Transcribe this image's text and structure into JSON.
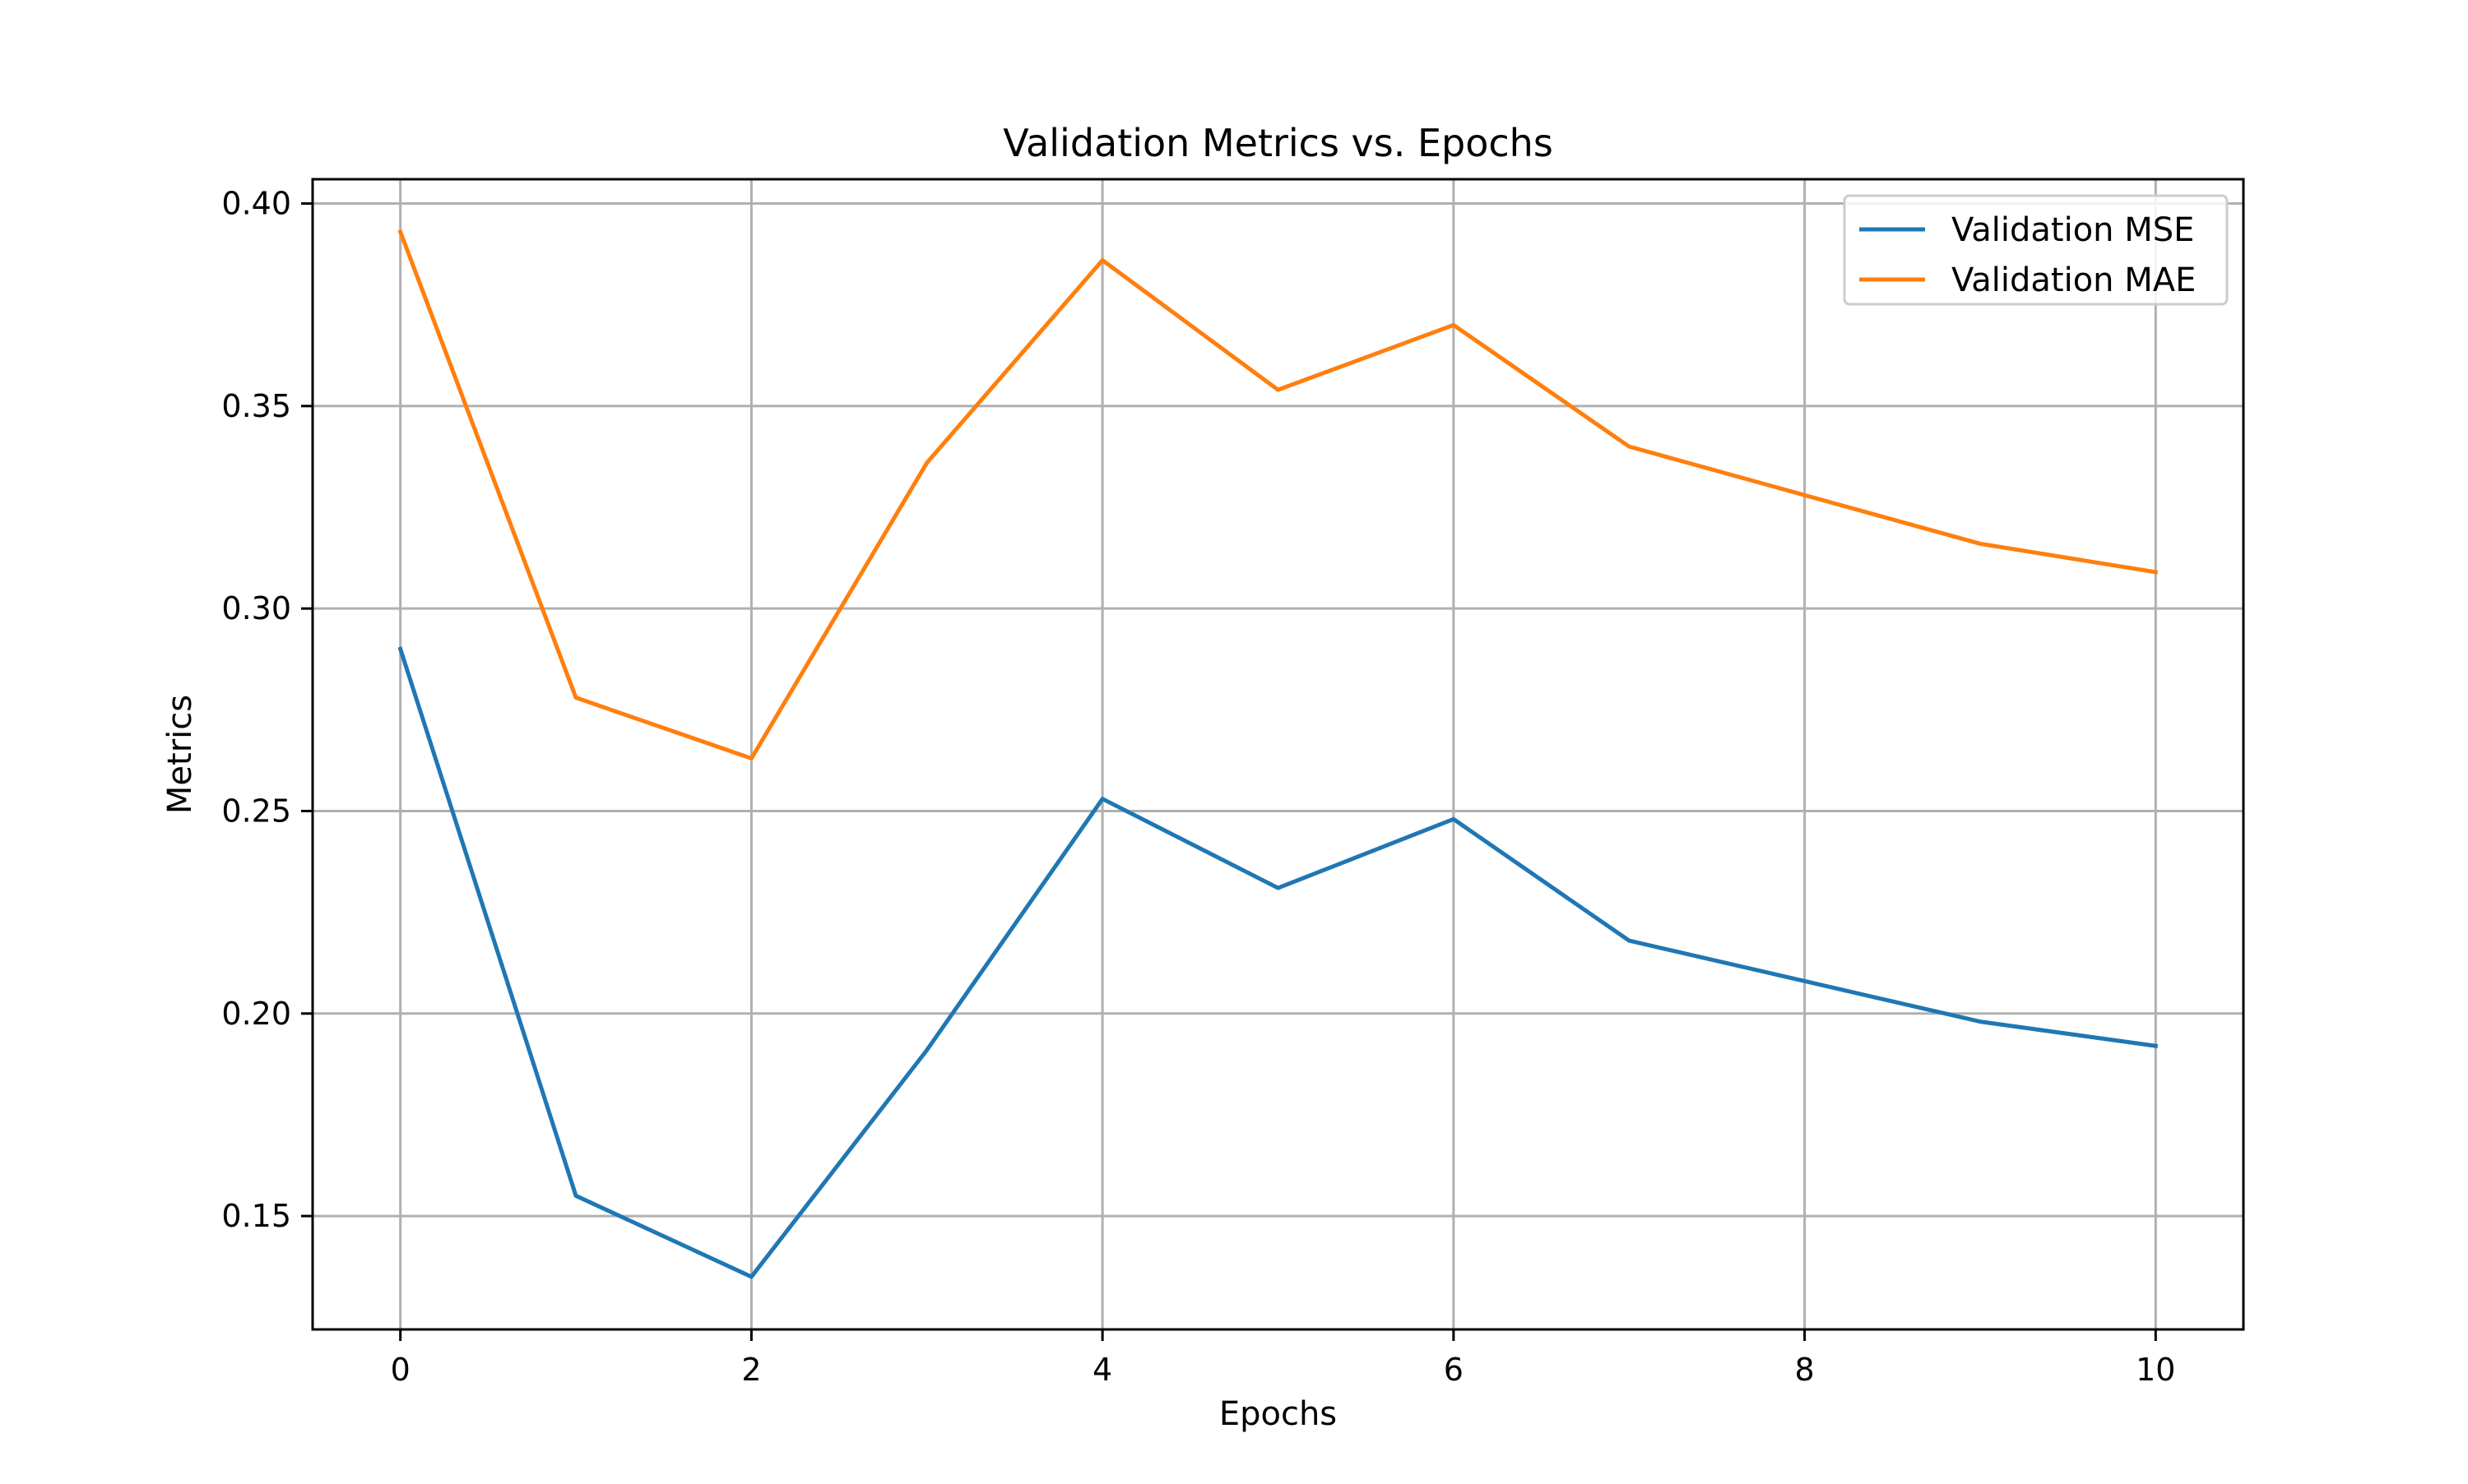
{
  "chart_data": {
    "type": "line",
    "title": "Validation Metrics vs. Epochs",
    "xlabel": "Epochs",
    "ylabel": "Metrics",
    "x": [
      0,
      1,
      2,
      3,
      4,
      5,
      6,
      7,
      8,
      9,
      10
    ],
    "xlim": [
      -0.5,
      10.5
    ],
    "ylim": [
      0.122,
      0.406
    ],
    "xticks": [
      0,
      2,
      4,
      6,
      8,
      10
    ],
    "xtick_labels": [
      "0",
      "2",
      "4",
      "6",
      "8",
      "10"
    ],
    "yticks": [
      0.15,
      0.2,
      0.25,
      0.3,
      0.35,
      0.4
    ],
    "ytick_labels": [
      "0.15",
      "0.20",
      "0.25",
      "0.30",
      "0.35",
      "0.40"
    ],
    "grid": true,
    "legend_position": "top-right",
    "series": [
      {
        "name": "Validation MSE",
        "color": "#1f77b4",
        "values": [
          0.29,
          0.155,
          0.135,
          0.191,
          0.253,
          0.231,
          0.248,
          0.218,
          0.208,
          0.198,
          0.192
        ]
      },
      {
        "name": "Validation MAE",
        "color": "#ff7f0e",
        "values": [
          0.393,
          0.278,
          0.263,
          0.336,
          0.386,
          0.354,
          0.37,
          0.34,
          0.328,
          0.316,
          0.309
        ]
      }
    ]
  }
}
